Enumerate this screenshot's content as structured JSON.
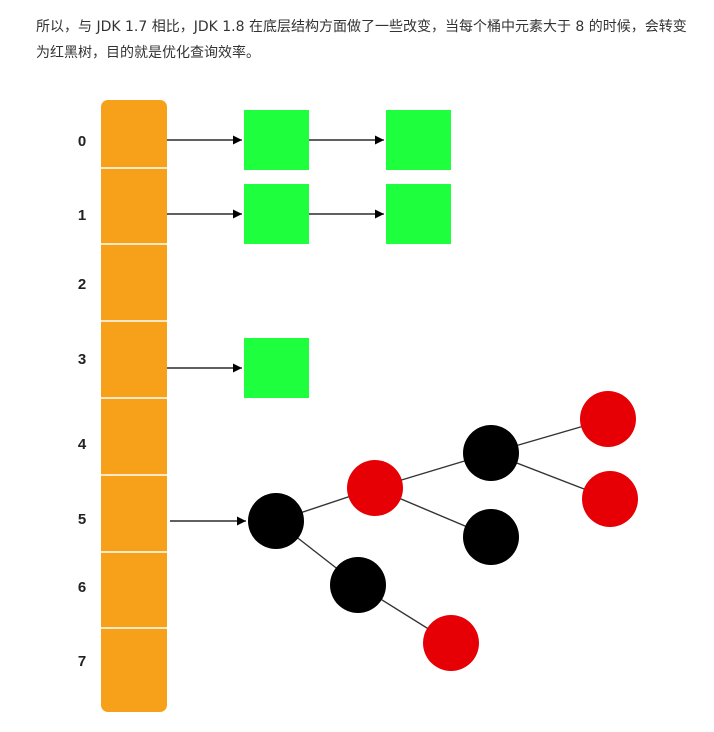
{
  "paragraph": "所以，与 JDK 1.7 相比，JDK 1.8 在底层结构方面做了一些改变，当每个桶中元素大于 8 的时候，会转变为红黑树，目的就是优化查询效率。",
  "diagram": {
    "bucket_indices": [
      "0",
      "1",
      "2",
      "3",
      "4",
      "5",
      "6",
      "7"
    ],
    "colors": {
      "bucket": "#F7A11A",
      "list_node": "#1EFF3D",
      "tree_red": "#E60005",
      "tree_black": "#000000",
      "arrow": "#000000",
      "edge": "#333333"
    }
  }
}
